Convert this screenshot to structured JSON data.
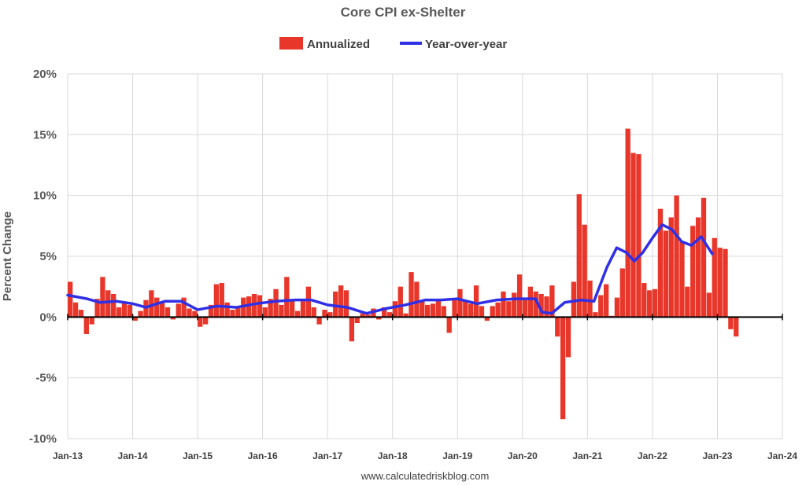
{
  "chart_data": {
    "type": "bar",
    "title": "Core CPI ex-Shelter",
    "xlabel": "",
    "ylabel": "Percent Change",
    "credit": "www.calculatedriskblog.com",
    "ylim": [
      -10,
      20
    ],
    "yticks": [
      -10,
      -5,
      0,
      5,
      10,
      15,
      20
    ],
    "ytick_labels": [
      "-10%",
      "-5%",
      "0%",
      "5%",
      "10%",
      "15%",
      "20%"
    ],
    "xlim": [
      2013.0,
      2024.0
    ],
    "xticks": [
      2013,
      2014,
      2015,
      2016,
      2017,
      2018,
      2019,
      2020,
      2021,
      2022,
      2023,
      2024
    ],
    "xtick_labels": [
      "Jan-13",
      "Jan-14",
      "Jan-15",
      "Jan-16",
      "Jan-17",
      "Jan-18",
      "Jan-19",
      "Jan-20",
      "Jan-21",
      "Jan-22",
      "Jan-23",
      "Jan-24"
    ],
    "grid": true,
    "legend_position": "top-center",
    "series": [
      {
        "name": "Annualized",
        "kind": "bar",
        "color": "#e8362a",
        "start": "Jan-13",
        "values": [
          2.9,
          1.2,
          0.6,
          -1.4,
          -0.6,
          1.5,
          3.3,
          2.2,
          1.9,
          0.8,
          1.2,
          1.0,
          -0.3,
          0.5,
          1.4,
          2.2,
          1.6,
          1.2,
          0.8,
          -0.2,
          1.1,
          1.6,
          0.7,
          0.5,
          -0.8,
          -0.6,
          1.0,
          2.7,
          2.8,
          1.2,
          0.6,
          0.9,
          1.6,
          1.7,
          1.9,
          1.8,
          0.8,
          1.5,
          2.3,
          1.0,
          3.3,
          1.4,
          0.5,
          1.3,
          2.5,
          0.8,
          -0.6,
          0.6,
          0.4,
          2.1,
          2.6,
          2.2,
          -2.0,
          -0.5,
          0.3,
          0.2,
          0.7,
          -0.2,
          0.8,
          0.4,
          1.3,
          2.5,
          0.3,
          3.7,
          2.9,
          1.3,
          1.0,
          1.1,
          1.4,
          0.9,
          -1.3,
          1.5,
          2.3,
          1.4,
          1.1,
          2.6,
          0.9,
          -0.3,
          0.9,
          1.2,
          2.1,
          1.3,
          2.0,
          3.5,
          1.4,
          2.5,
          2.1,
          1.9,
          1.7,
          2.6,
          -1.6,
          -8.4,
          -3.3,
          2.9,
          10.1,
          7.6,
          3.0,
          0.4,
          1.8,
          2.7,
          0.1,
          1.6,
          4.0,
          15.5,
          13.5,
          13.4,
          2.8,
          2.2,
          2.3,
          8.9,
          7.1,
          8.2,
          10.0,
          6.2,
          2.5,
          7.5,
          8.2,
          9.8,
          2.0,
          6.5,
          5.7,
          5.6,
          -1.0,
          -1.6
        ]
      },
      {
        "name": "Year-over-year",
        "kind": "line",
        "color": "#2f2fe6",
        "points": [
          [
            2013.0,
            1.8
          ],
          [
            2013.3,
            1.5
          ],
          [
            2013.5,
            1.2
          ],
          [
            2013.75,
            1.3
          ],
          [
            2014.0,
            1.1
          ],
          [
            2014.2,
            0.8
          ],
          [
            2014.5,
            1.3
          ],
          [
            2014.75,
            1.3
          ],
          [
            2015.0,
            0.6
          ],
          [
            2015.3,
            0.9
          ],
          [
            2015.6,
            0.8
          ],
          [
            2015.9,
            1.1
          ],
          [
            2016.2,
            1.3
          ],
          [
            2016.5,
            1.4
          ],
          [
            2016.75,
            1.4
          ],
          [
            2017.0,
            1.0
          ],
          [
            2017.3,
            0.8
          ],
          [
            2017.6,
            0.3
          ],
          [
            2017.9,
            0.7
          ],
          [
            2018.2,
            1.0
          ],
          [
            2018.5,
            1.4
          ],
          [
            2018.75,
            1.4
          ],
          [
            2019.0,
            1.5
          ],
          [
            2019.3,
            1.1
          ],
          [
            2019.6,
            1.4
          ],
          [
            2019.9,
            1.5
          ],
          [
            2020.2,
            1.5
          ],
          [
            2020.3,
            0.4
          ],
          [
            2020.45,
            0.3
          ],
          [
            2020.65,
            1.2
          ],
          [
            2020.9,
            1.4
          ],
          [
            2021.1,
            1.3
          ],
          [
            2021.3,
            4.1
          ],
          [
            2021.45,
            5.7
          ],
          [
            2021.6,
            5.3
          ],
          [
            2021.72,
            4.6
          ],
          [
            2021.85,
            5.3
          ],
          [
            2022.0,
            6.5
          ],
          [
            2022.15,
            7.6
          ],
          [
            2022.3,
            7.2
          ],
          [
            2022.45,
            6.2
          ],
          [
            2022.6,
            5.9
          ],
          [
            2022.75,
            6.6
          ],
          [
            2022.92,
            5.2
          ]
        ]
      }
    ]
  }
}
